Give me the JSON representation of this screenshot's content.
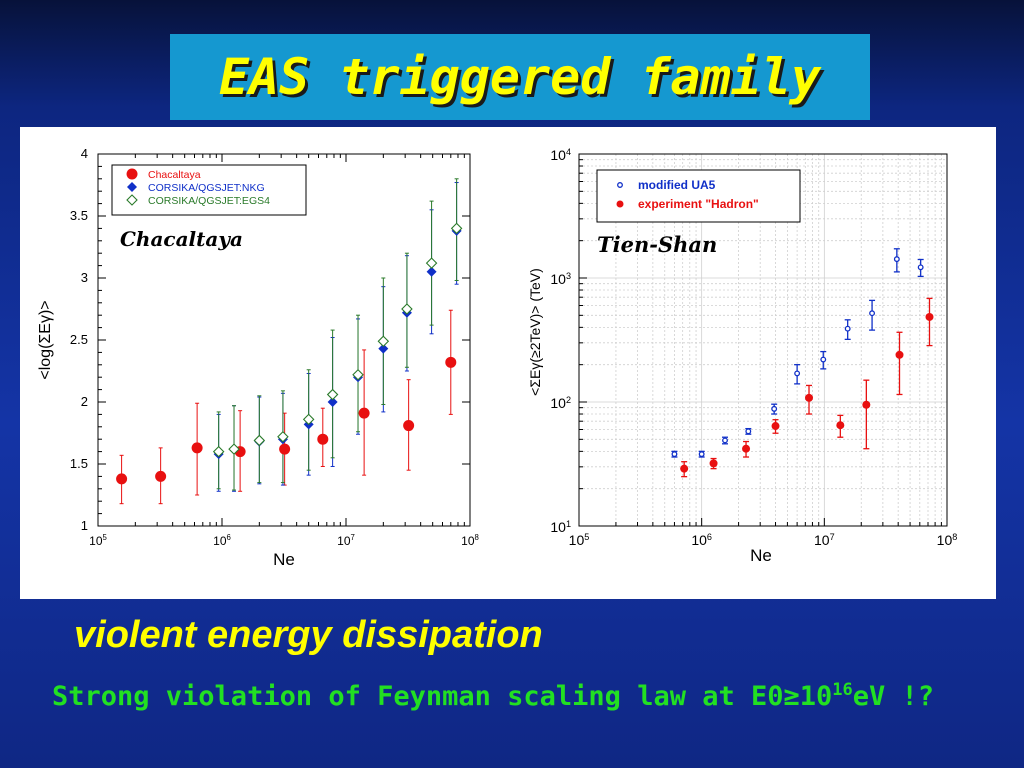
{
  "slide": {
    "title": "EAS triggered family",
    "caption": "violent energy dissipation",
    "statement_prefix": "Strong violation of Feynman scaling law at E0≥10",
    "statement_exp": "16",
    "statement_suffix": "eV !?"
  },
  "chart_data": [
    {
      "type": "scatter",
      "annotation": "Chacaltaya",
      "xlabel": "Ne",
      "ylabel": "<log(ΣEγ)>",
      "x_scale": "log",
      "xlim": [
        100000,
        100000000
      ],
      "ylim": [
        1,
        4
      ],
      "x_ticks": [
        {
          "base": "10",
          "exp": "5"
        },
        {
          "base": "10",
          "exp": "6"
        },
        {
          "base": "10",
          "exp": "7"
        },
        {
          "base": "10",
          "exp": "8"
        }
      ],
      "y_ticks": [
        "1",
        "1.5",
        "2",
        "2.5",
        "3",
        "3.5",
        "4"
      ],
      "legend_position": "top-left",
      "series": [
        {
          "name": "Chacaltaya",
          "marker": "circle",
          "color": "#e81010",
          "points": [
            {
              "x": 155000,
              "y": 1.38,
              "lo": 1.18,
              "hi": 1.57
            },
            {
              "x": 320000,
              "y": 1.4,
              "lo": 1.18,
              "hi": 1.63
            },
            {
              "x": 630000,
              "y": 1.63,
              "lo": 1.25,
              "hi": 1.99
            },
            {
              "x": 1400000,
              "y": 1.6,
              "lo": 1.28,
              "hi": 1.93
            },
            {
              "x": 3200000,
              "y": 1.62,
              "lo": 1.33,
              "hi": 1.91
            },
            {
              "x": 6500000,
              "y": 1.7,
              "lo": 1.48,
              "hi": 1.95
            },
            {
              "x": 14000000,
              "y": 1.91,
              "lo": 1.41,
              "hi": 2.42
            },
            {
              "x": 32000000,
              "y": 1.81,
              "lo": 1.45,
              "hi": 2.18
            },
            {
              "x": 70000000,
              "y": 2.32,
              "lo": 1.9,
              "hi": 2.74
            }
          ]
        },
        {
          "name": "CORSIKA/QGSJET:NKG",
          "marker": "diamond-filled",
          "color": "#1030c8",
          "points": [
            {
              "x": 940000,
              "y": 1.58,
              "lo": 1.28,
              "hi": 1.9
            },
            {
              "x": 1250000,
              "y": 1.62,
              "lo": 1.28,
              "hi": 1.97
            },
            {
              "x": 2000000,
              "y": 1.68,
              "lo": 1.34,
              "hi": 2.04
            },
            {
              "x": 3100000,
              "y": 1.7,
              "lo": 1.33,
              "hi": 2.07
            },
            {
              "x": 5000000,
              "y": 1.82,
              "lo": 1.41,
              "hi": 2.23
            },
            {
              "x": 7800000,
              "y": 2.0,
              "lo": 1.48,
              "hi": 2.52
            },
            {
              "x": 12500000,
              "y": 2.2,
              "lo": 1.74,
              "hi": 2.67
            },
            {
              "x": 20000000,
              "y": 2.43,
              "lo": 1.92,
              "hi": 2.93
            },
            {
              "x": 31000000,
              "y": 2.72,
              "lo": 2.25,
              "hi": 3.18
            },
            {
              "x": 49000000,
              "y": 3.05,
              "lo": 2.55,
              "hi": 3.55
            },
            {
              "x": 78000000,
              "y": 3.38,
              "lo": 2.95,
              "hi": 3.77
            }
          ]
        },
        {
          "name": "CORSIKA/QGSJET:EGS4",
          "marker": "diamond-open",
          "color": "#2a7a2a",
          "points": [
            {
              "x": 940000,
              "y": 1.6,
              "lo": 1.3,
              "hi": 1.92
            },
            {
              "x": 1250000,
              "y": 1.62,
              "lo": 1.29,
              "hi": 1.97
            },
            {
              "x": 2000000,
              "y": 1.69,
              "lo": 1.35,
              "hi": 2.05
            },
            {
              "x": 3100000,
              "y": 1.72,
              "lo": 1.35,
              "hi": 2.09
            },
            {
              "x": 5000000,
              "y": 1.86,
              "lo": 1.45,
              "hi": 2.26
            },
            {
              "x": 7800000,
              "y": 2.06,
              "lo": 1.55,
              "hi": 2.58
            },
            {
              "x": 12500000,
              "y": 2.22,
              "lo": 1.76,
              "hi": 2.7
            },
            {
              "x": 20000000,
              "y": 2.49,
              "lo": 1.98,
              "hi": 3.0
            },
            {
              "x": 31000000,
              "y": 2.75,
              "lo": 2.28,
              "hi": 3.2
            },
            {
              "x": 49000000,
              "y": 3.12,
              "lo": 2.62,
              "hi": 3.62
            },
            {
              "x": 78000000,
              "y": 3.4,
              "lo": 2.98,
              "hi": 3.8
            }
          ]
        }
      ]
    },
    {
      "type": "scatter",
      "annotation": "Tien-Shan",
      "xlabel": "Ne",
      "ylabel": "<ΣEγ(≥2TeV)>  (TeV)",
      "x_scale": "log",
      "y_scale": "log",
      "xlim": [
        100000,
        100000000
      ],
      "ylim": [
        10,
        10000
      ],
      "grid": true,
      "x_ticks": [
        {
          "base": "10",
          "exp": "5"
        },
        {
          "base": "10",
          "exp": "6"
        },
        {
          "base": "10",
          "exp": "7"
        },
        {
          "base": "10",
          "exp": "8"
        }
      ],
      "y_ticks": [
        {
          "base": "10",
          "exp": "1"
        },
        {
          "base": "10",
          "exp": "2"
        },
        {
          "base": "10",
          "exp": "3"
        },
        {
          "base": "10",
          "exp": "4"
        }
      ],
      "legend_position": "top-left",
      "series": [
        {
          "name": "modified UA5",
          "marker": "circle-open",
          "color": "#1030c8",
          "points": [
            {
              "x": 600000,
              "y": 38,
              "lo": 36,
              "hi": 40
            },
            {
              "x": 1000000,
              "y": 38,
              "lo": 36,
              "hi": 40
            },
            {
              "x": 1550000,
              "y": 49,
              "lo": 46,
              "hi": 52
            },
            {
              "x": 2400000,
              "y": 58,
              "lo": 55,
              "hi": 61
            },
            {
              "x": 3900000,
              "y": 88,
              "lo": 80,
              "hi": 96
            },
            {
              "x": 6000000,
              "y": 170,
              "lo": 140,
              "hi": 200
            },
            {
              "x": 9800000,
              "y": 220,
              "lo": 185,
              "hi": 255
            },
            {
              "x": 15500000,
              "y": 390,
              "lo": 320,
              "hi": 460
            },
            {
              "x": 24500000,
              "y": 520,
              "lo": 380,
              "hi": 660
            },
            {
              "x": 39000000,
              "y": 1420,
              "lo": 1120,
              "hi": 1720
            },
            {
              "x": 61000000,
              "y": 1220,
              "lo": 1030,
              "hi": 1410
            }
          ]
        },
        {
          "name": "experiment \"Hadron\"",
          "marker": "circle",
          "color": "#e81010",
          "points": [
            {
              "x": 720000,
              "y": 29,
              "lo": 25,
              "hi": 33
            },
            {
              "x": 1250000,
              "y": 32,
              "lo": 29,
              "hi": 35
            },
            {
              "x": 2300000,
              "y": 42,
              "lo": 36,
              "hi": 48
            },
            {
              "x": 4000000,
              "y": 64,
              "lo": 56,
              "hi": 72
            },
            {
              "x": 7500000,
              "y": 108,
              "lo": 80,
              "hi": 136
            },
            {
              "x": 13500000,
              "y": 65,
              "lo": 52,
              "hi": 78
            },
            {
              "x": 22000000,
              "y": 95,
              "lo": 42,
              "hi": 150
            },
            {
              "x": 41000000,
              "y": 240,
              "lo": 115,
              "hi": 365
            },
            {
              "x": 72000000,
              "y": 485,
              "lo": 285,
              "hi": 685
            }
          ]
        }
      ]
    }
  ]
}
